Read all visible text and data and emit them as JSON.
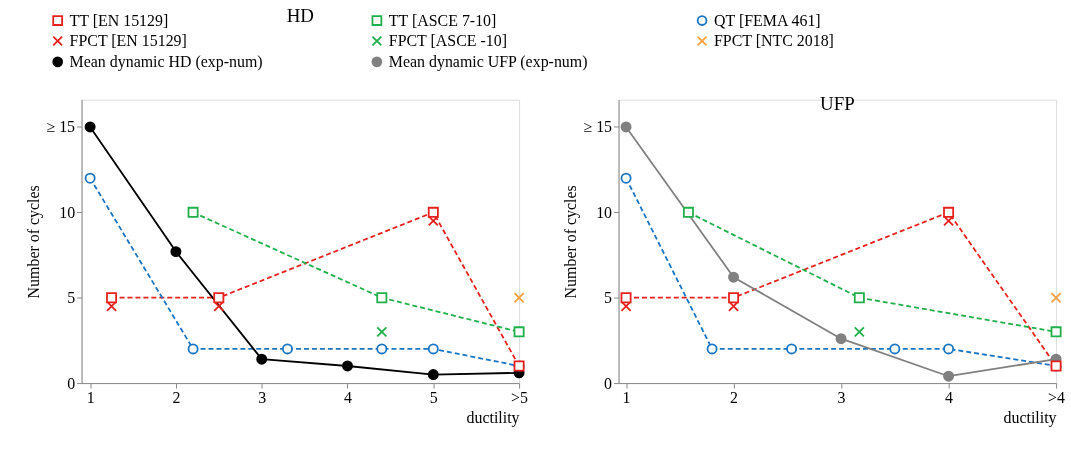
{
  "chart_data": [
    {
      "type": "line",
      "title": "HD",
      "xlabel": "ductility",
      "ylabel": "Number of cycles",
      "xlim": [
        0.9,
        6
      ],
      "ylim": [
        0,
        16.6
      ],
      "xticks": [
        1,
        2,
        3,
        4,
        5,
        {
          "value": 6,
          "label": ">5"
        }
      ],
      "yticks": [
        0,
        5,
        10,
        {
          "value": 15,
          "label": "≥ 15"
        }
      ],
      "grid": false,
      "legend": "top",
      "series": [
        {
          "name": "TT [EN 15129]",
          "color": "#e8201c",
          "marker": "square",
          "line_style": "dashed",
          "x": [
            1.25,
            2.5,
            5,
            6
          ],
          "values": [
            5,
            5,
            10,
            1
          ]
        },
        {
          "name": "TT [ASCE 7-10]",
          "color": "#1fb04a",
          "marker": "square",
          "line_style": "dashed",
          "x": [
            2.2,
            4.4,
            6
          ],
          "values": [
            10,
            5,
            3
          ]
        },
        {
          "name": "QT [FEMA 461]",
          "color": "#1a74c4",
          "marker": "circle",
          "line_style": "dashed",
          "x": [
            1,
            2.2,
            3.3,
            4.4,
            5,
            6
          ],
          "values": [
            12,
            2,
            2,
            2,
            2,
            1
          ]
        },
        {
          "name": "FPCT [EN 15129]",
          "type": "scatter",
          "color": "#e8201c",
          "marker": "cross",
          "x": [
            1.25,
            2.5,
            5
          ],
          "values": [
            4.5,
            4.5,
            9.5
          ]
        },
        {
          "name": "FPCT [ASCE -10]",
          "type": "scatter",
          "color": "#1fb04a",
          "marker": "cross",
          "x": [
            4.4
          ],
          "values": [
            3
          ]
        },
        {
          "name": "FPCT [NTC 2018]",
          "type": "scatter",
          "color": "#f9a040",
          "marker": "cross",
          "x": [
            6
          ],
          "values": [
            5
          ]
        },
        {
          "name": "Mean dynamic HD (exp-num)",
          "color": "#000000",
          "marker": "circle",
          "line_style": "solid",
          "x": [
            1,
            2,
            3,
            4,
            5,
            6
          ],
          "values": [
            15,
            7.7,
            1.4,
            1.0,
            0.5,
            0.6
          ]
        }
      ]
    },
    {
      "type": "line",
      "title": "UFP",
      "xlabel": "ductility",
      "ylabel": "Number of cycles",
      "xlim": [
        0.93,
        5
      ],
      "ylim": [
        0,
        16.6
      ],
      "xticks": [
        1,
        2,
        3,
        4,
        {
          "value": 5,
          "label": ">4"
        }
      ],
      "yticks": [
        0,
        5,
        10,
        {
          "value": 15,
          "label": "≥ 15"
        }
      ],
      "grid": false,
      "legend": "top",
      "series": [
        {
          "name": "TT [EN 15129]",
          "color": "#e8201c",
          "marker": "square",
          "line_style": "dashed",
          "x": [
            1,
            2,
            4,
            5
          ],
          "values": [
            5,
            5,
            10,
            1
          ]
        },
        {
          "name": "TT [ASCE 7-10]",
          "color": "#1fb04a",
          "marker": "square",
          "line_style": "dashed",
          "x": [
            1.58,
            3.17,
            5
          ],
          "values": [
            10,
            5,
            3
          ]
        },
        {
          "name": "QT [FEMA 461]",
          "color": "#1a74c4",
          "marker": "circle",
          "line_style": "dashed",
          "x": [
            1,
            1.8,
            2.54,
            3.5,
            4,
            5
          ],
          "values": [
            12,
            2,
            2,
            2,
            2,
            1
          ]
        },
        {
          "name": "FPCT [EN 15129]",
          "type": "scatter",
          "color": "#e8201c",
          "marker": "cross",
          "x": [
            1,
            2,
            4
          ],
          "values": [
            4.5,
            4.5,
            9.5
          ]
        },
        {
          "name": "FPCT [ASCE -10]",
          "type": "scatter",
          "color": "#1fb04a",
          "marker": "cross",
          "x": [
            3.17
          ],
          "values": [
            3
          ]
        },
        {
          "name": "FPCT [NTC 2018]",
          "type": "scatter",
          "color": "#f9a040",
          "marker": "cross",
          "x": [
            5
          ],
          "values": [
            5
          ]
        },
        {
          "name": "Mean dynamic UFP (exp-num)",
          "color": "#808080",
          "marker": "circle",
          "line_style": "solid",
          "x": [
            1,
            2,
            3,
            4,
            5
          ],
          "values": [
            15,
            6.2,
            2.6,
            0.4,
            1.4
          ]
        }
      ]
    }
  ]
}
